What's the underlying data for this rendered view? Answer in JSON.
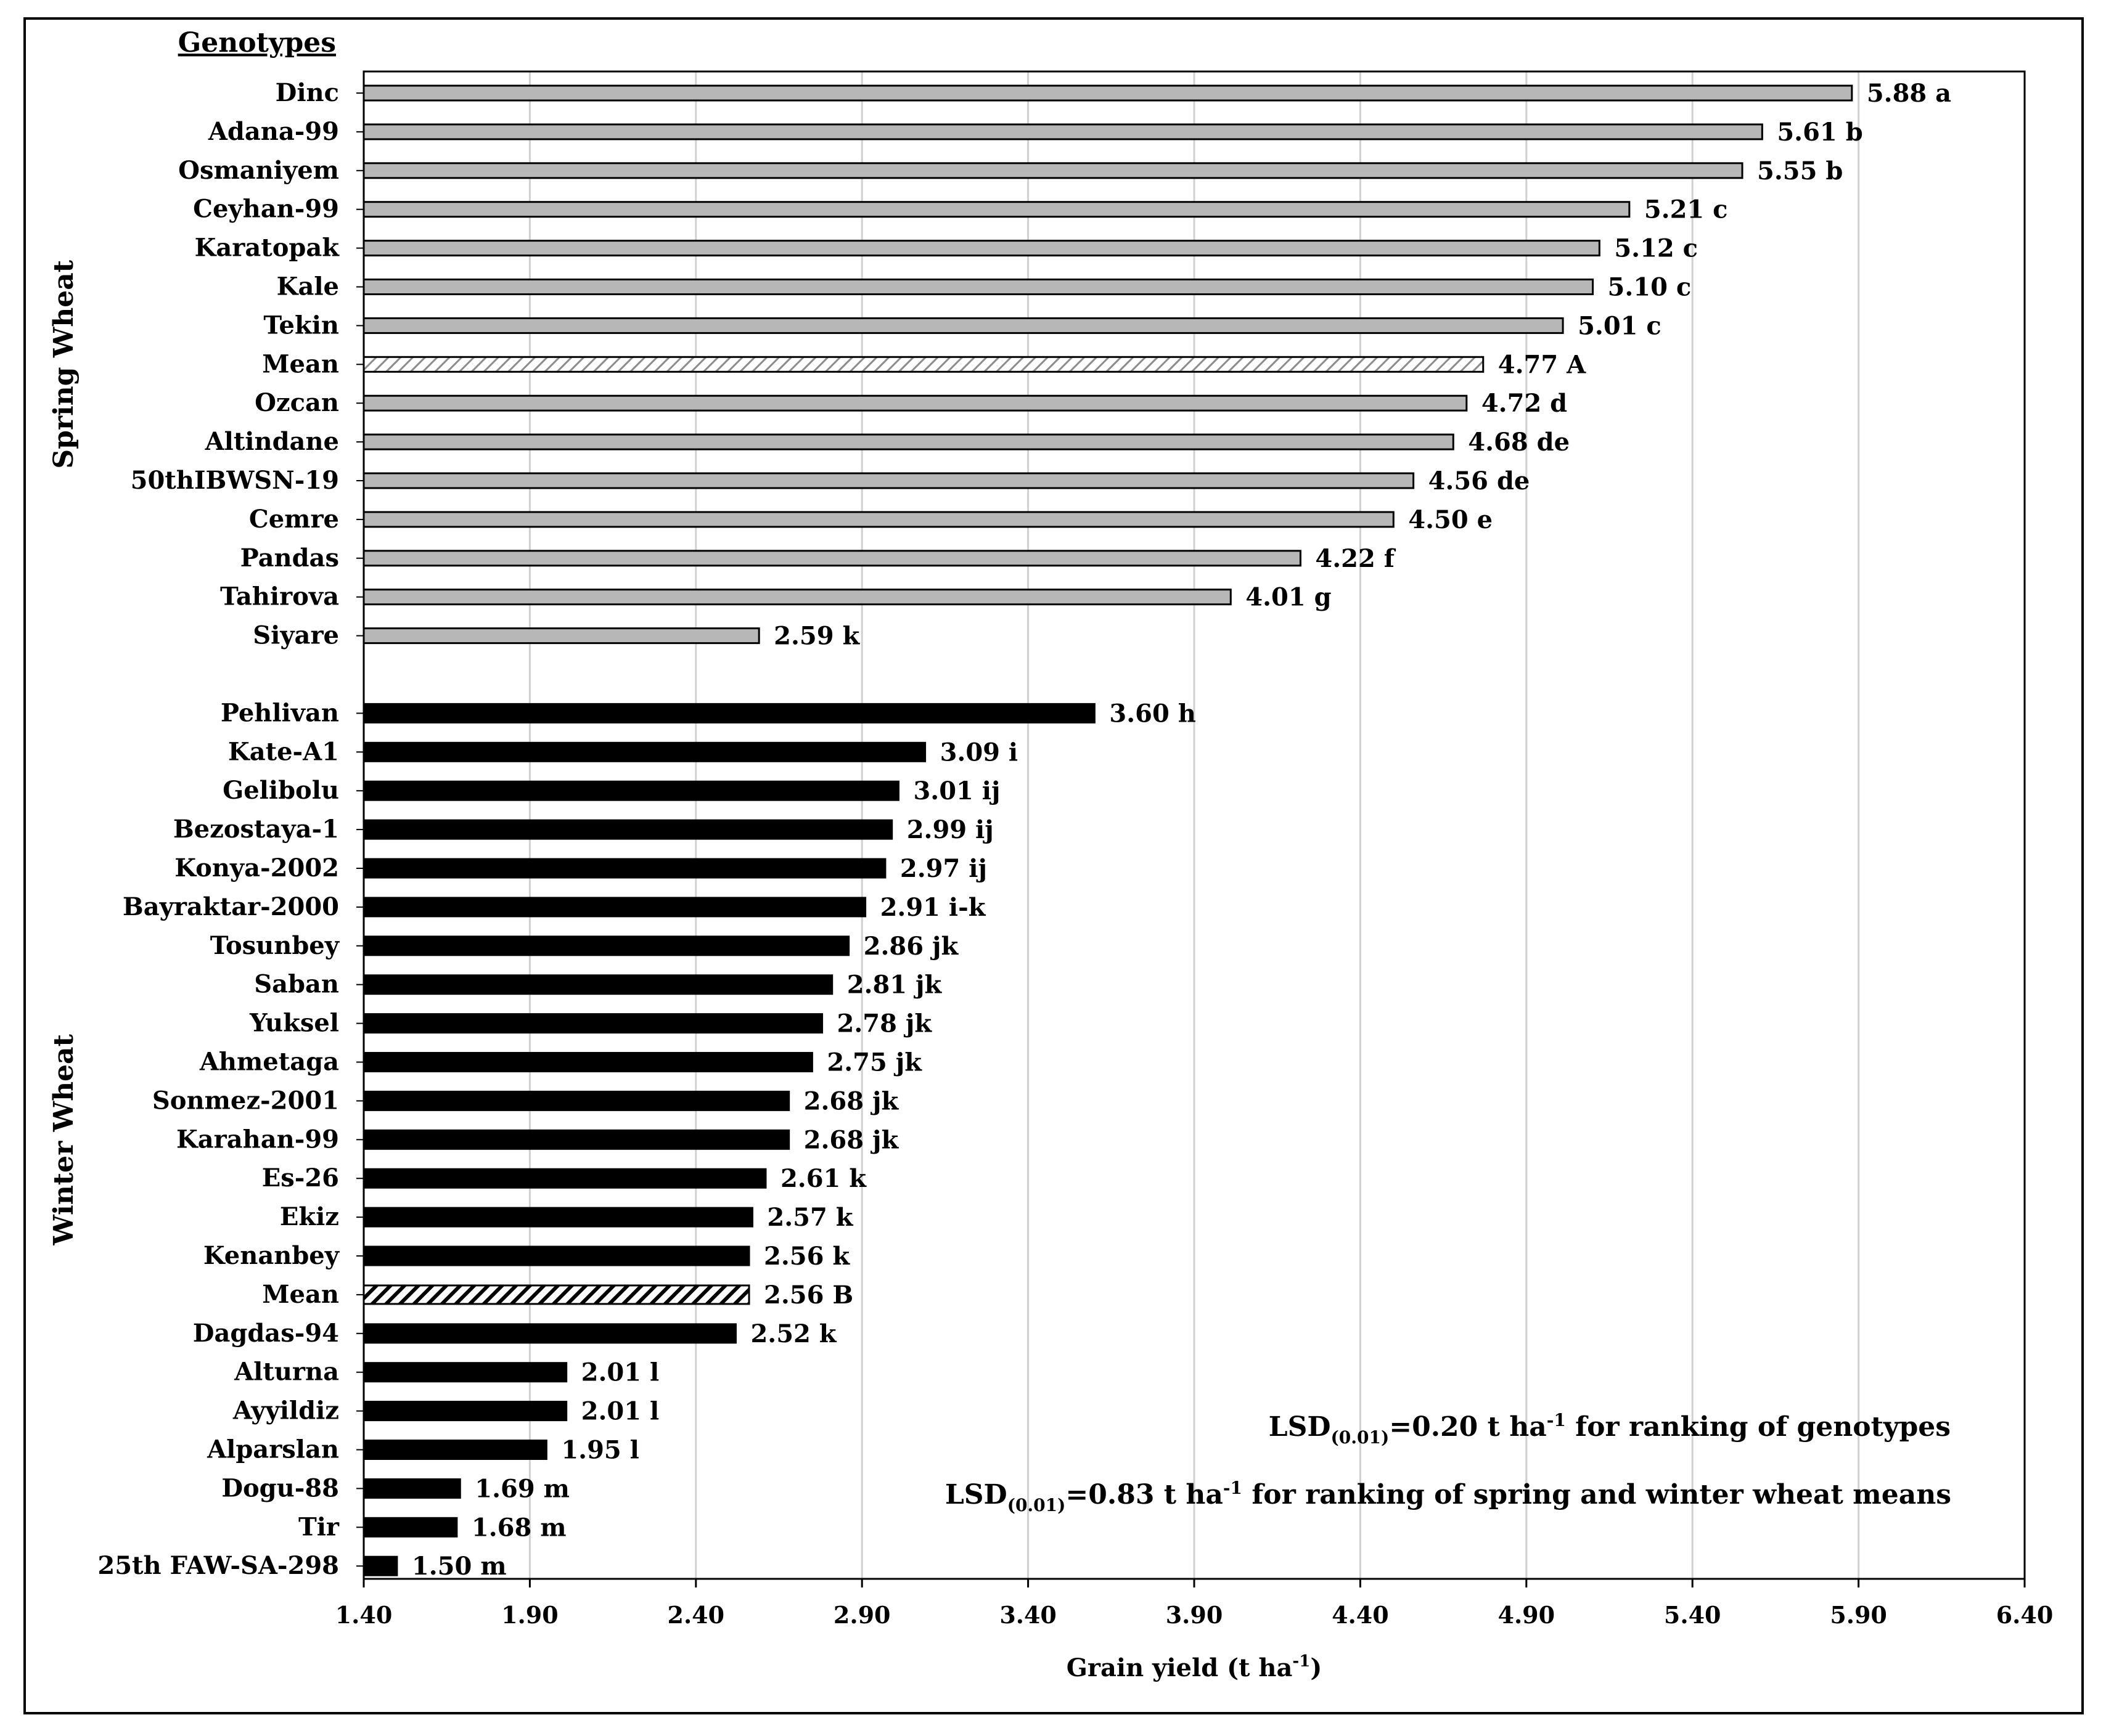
{
  "chart_data": {
    "type": "bar",
    "orientation": "horizontal",
    "category_header": "Genotypes",
    "xlabel": "Grain yield (t ha-1)",
    "xlabel_parts": {
      "base": "Grain yield (t ha",
      "sup": "-1",
      "end": ")"
    },
    "xlim": [
      1.4,
      6.4
    ],
    "xticks": [
      "1.40",
      "1.90",
      "2.40",
      "2.90",
      "3.40",
      "3.90",
      "4.40",
      "4.90",
      "5.40",
      "5.90",
      "6.40"
    ],
    "grid": "vertical",
    "groups": [
      {
        "name": "Spring Wheat",
        "style": "gray",
        "items": [
          {
            "genotype": "Dinc",
            "value": 5.88,
            "label": "5.88 a"
          },
          {
            "genotype": "Adana-99",
            "value": 5.61,
            "label": "5.61 b"
          },
          {
            "genotype": "Osmaniyem",
            "value": 5.55,
            "label": "5.55 b"
          },
          {
            "genotype": "Ceyhan-99",
            "value": 5.21,
            "label": "5.21 c"
          },
          {
            "genotype": "Karatopak",
            "value": 5.12,
            "label": "5.12 c"
          },
          {
            "genotype": "Kale",
            "value": 5.1,
            "label": "5.10 c"
          },
          {
            "genotype": "Tekin",
            "value": 5.01,
            "label": "5.01 c"
          },
          {
            "genotype": "Mean",
            "value": 4.77,
            "label": "4.77 A",
            "mean": true
          },
          {
            "genotype": "Ozcan",
            "value": 4.72,
            "label": "4.72 d"
          },
          {
            "genotype": "Altindane",
            "value": 4.68,
            "label": "4.68 de"
          },
          {
            "genotype": "50thIBWSN-19",
            "value": 4.56,
            "label": "4.56 de"
          },
          {
            "genotype": "Cemre",
            "value": 4.5,
            "label": "4.50 e"
          },
          {
            "genotype": "Pandas",
            "value": 4.22,
            "label": "4.22 f"
          },
          {
            "genotype": "Tahirova",
            "value": 4.01,
            "label": "4.01 g"
          },
          {
            "genotype": "Siyare",
            "value": 2.59,
            "label": "2.59 k"
          }
        ]
      },
      {
        "name": "Winter Wheat",
        "style": "black",
        "items": [
          {
            "genotype": "Pehlivan",
            "value": 3.6,
            "label": "3.60 h"
          },
          {
            "genotype": "Kate-A1",
            "value": 3.09,
            "label": "3.09 i"
          },
          {
            "genotype": "Gelibolu",
            "value": 3.01,
            "label": "3.01 ij"
          },
          {
            "genotype": "Bezostaya-1",
            "value": 2.99,
            "label": "2.99 ij"
          },
          {
            "genotype": "Konya-2002",
            "value": 2.97,
            "label": "2.97 ij"
          },
          {
            "genotype": "Bayraktar-2000",
            "value": 2.91,
            "label": "2.91 i-k"
          },
          {
            "genotype": "Tosunbey",
            "value": 2.86,
            "label": "2.86 jk"
          },
          {
            "genotype": "Saban",
            "value": 2.81,
            "label": "2.81 jk"
          },
          {
            "genotype": "Yuksel",
            "value": 2.78,
            "label": "2.78 jk"
          },
          {
            "genotype": "Ahmetaga",
            "value": 2.75,
            "label": "2.75 jk"
          },
          {
            "genotype": "Sonmez-2001",
            "value": 2.68,
            "label": "2.68 jk"
          },
          {
            "genotype": "Karahan-99",
            "value": 2.68,
            "label": "2.68 jk"
          },
          {
            "genotype": "Es-26",
            "value": 2.61,
            "label": "2.61 k"
          },
          {
            "genotype": "Ekiz",
            "value": 2.57,
            "label": "2.57 k"
          },
          {
            "genotype": "Kenanbey",
            "value": 2.56,
            "label": "2.56 k"
          },
          {
            "genotype": "Mean",
            "value": 2.56,
            "label": "2.56 B",
            "mean": true
          },
          {
            "genotype": "Dagdas-94",
            "value": 2.52,
            "label": "2.52 k"
          },
          {
            "genotype": "Alturna",
            "value": 2.01,
            "label": "2.01 l"
          },
          {
            "genotype": "Ayyildiz",
            "value": 2.01,
            "label": "2.01 l"
          },
          {
            "genotype": "Alparslan",
            "value": 1.95,
            "label": "1.95 l"
          },
          {
            "genotype": "Dogu-88",
            "value": 1.69,
            "label": "1.69 m"
          },
          {
            "genotype": "Tir",
            "value": 1.68,
            "label": "1.68 m"
          },
          {
            "genotype": "25th FAW-SA-298",
            "value": 1.5,
            "label": "1.50 m"
          }
        ]
      }
    ],
    "annotations": [
      {
        "text": "LSD(0.01)=0.20 t ha-1 for ranking of genotypes",
        "pre": "LSD",
        "sub": "(0.01)",
        "mid": "=0.20 t ha",
        "sup": "-1",
        "post": " for ranking of genotypes"
      },
      {
        "text": "LSD(0.01)=0.83 t ha-1 for ranking of spring and winter wheat means",
        "pre": "LSD",
        "sub": "(0.01)",
        "mid": "=0.83 t ha",
        "sup": "-1",
        "post": " for ranking of spring and winter wheat means"
      }
    ],
    "colors": {
      "gray_bar": "#b7b7b7",
      "black_bar": "#000000",
      "grid": "#d0d0d0",
      "axis": "#000000"
    }
  }
}
